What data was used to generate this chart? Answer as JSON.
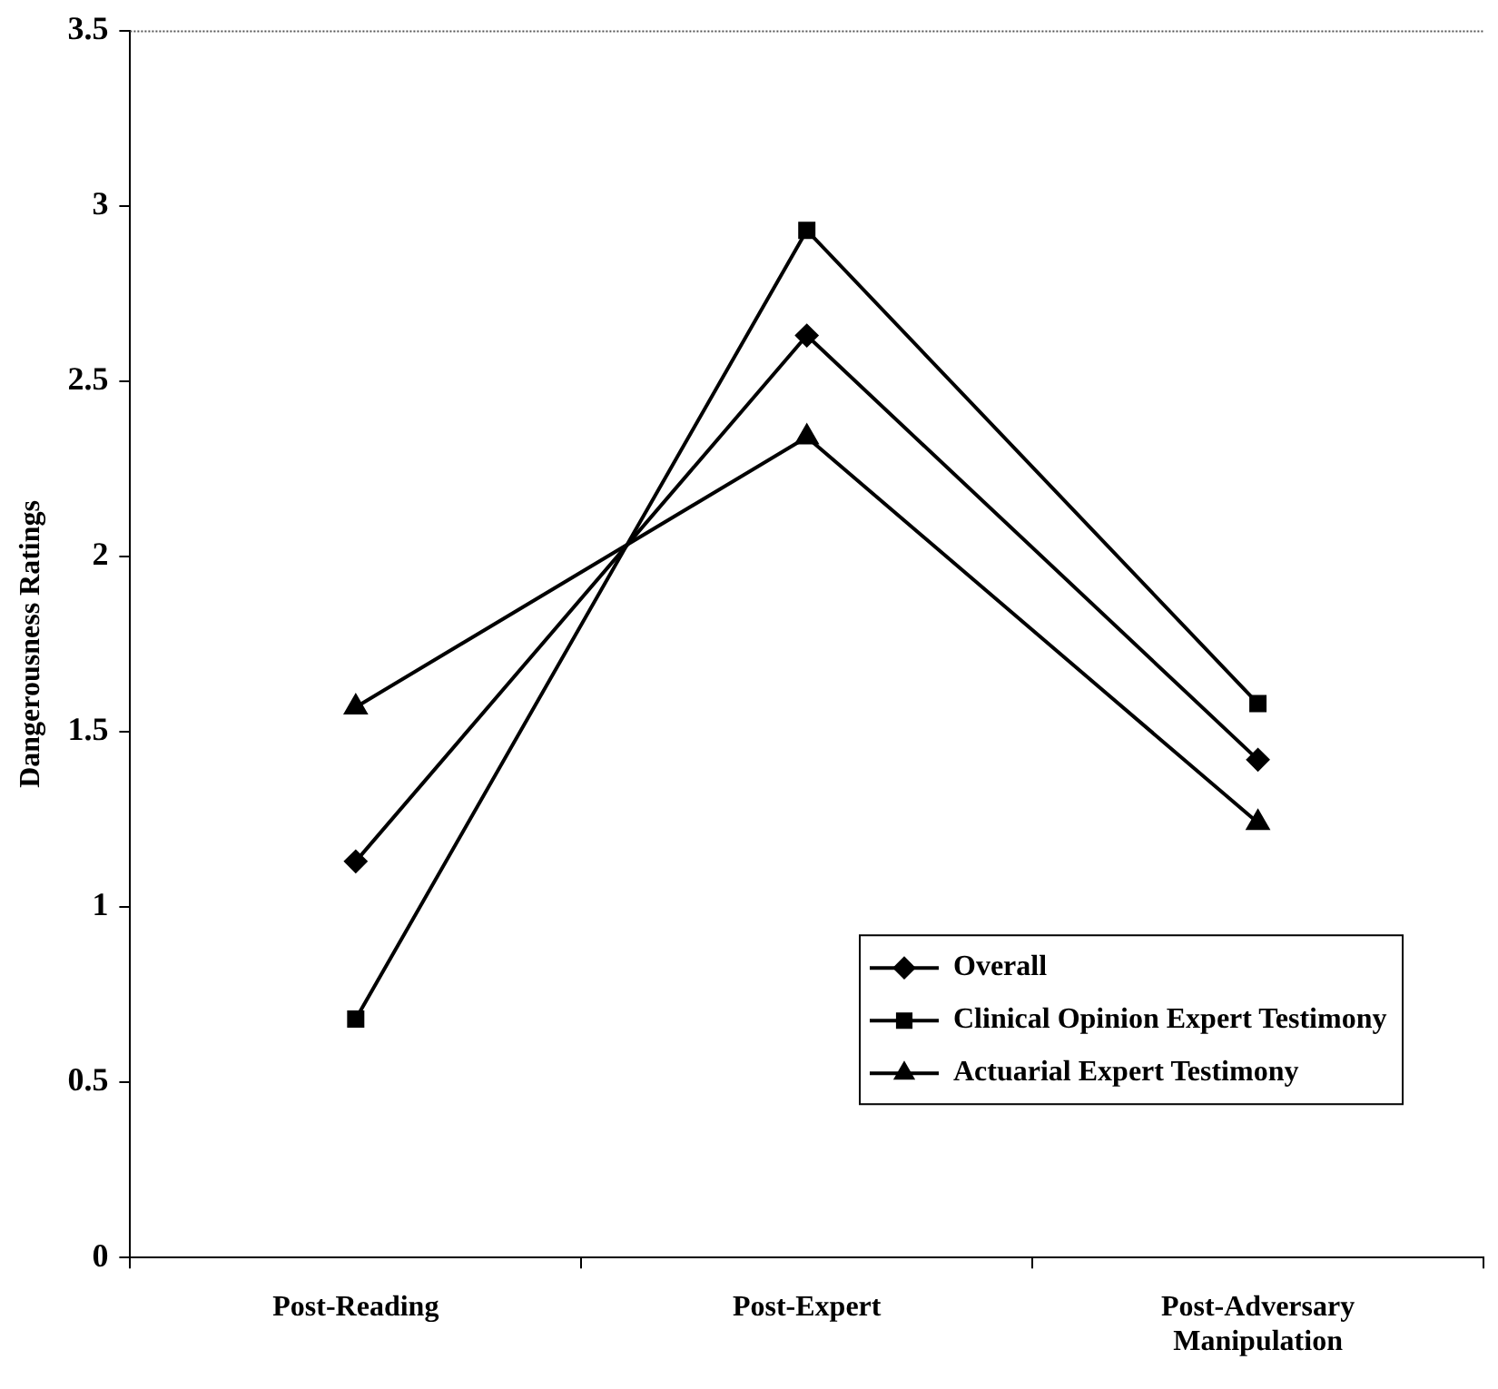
{
  "chart_data": {
    "type": "line",
    "ylabel": "Dangerousness Ratings",
    "categories": [
      "Post-Reading",
      "Post-Expert",
      "Post-Adversary Manipulation"
    ],
    "series": [
      {
        "name": "Overall",
        "color": "#000000",
        "marker": "diamond",
        "values": [
          1.13,
          2.63,
          1.42
        ]
      },
      {
        "name": "Clinical Opinion Expert Testimony",
        "color": "#000000",
        "marker": "square",
        "values": [
          0.68,
          2.93,
          1.58
        ]
      },
      {
        "name": "Actuarial Expert Testimony",
        "color": "#000000",
        "marker": "triangle",
        "values": [
          1.57,
          2.34,
          1.24
        ]
      }
    ],
    "ylim": [
      0,
      3.5
    ],
    "yticks": [
      0,
      0.5,
      1,
      1.5,
      2,
      2.5,
      3,
      3.5
    ],
    "grid": false,
    "legend": "bottom right",
    "line_style": "solid"
  }
}
